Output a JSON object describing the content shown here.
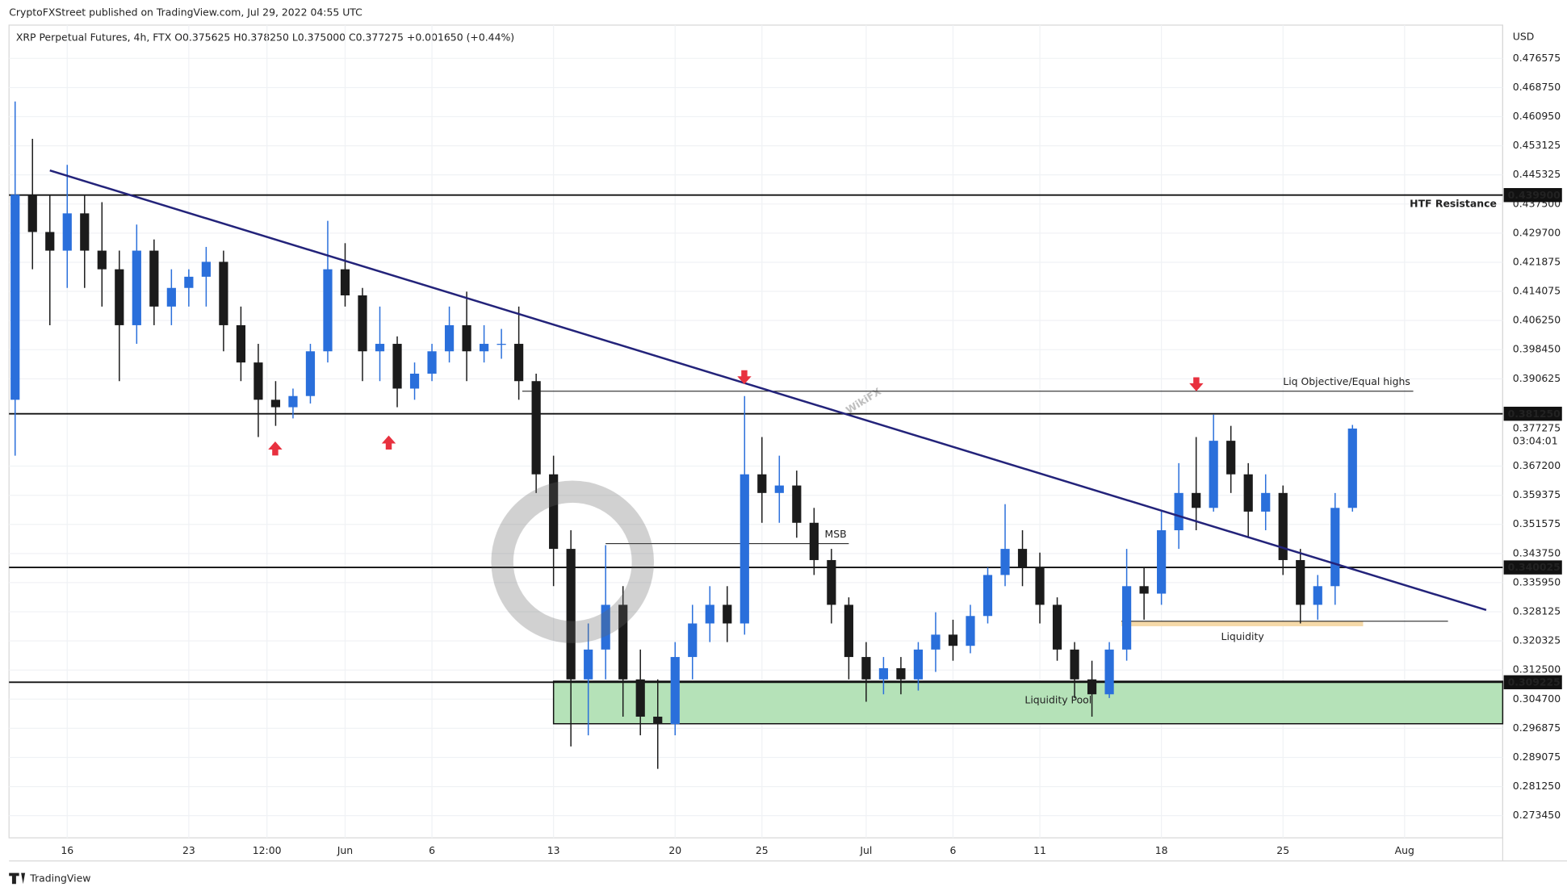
{
  "header": {
    "publisher": "CryptoFXStreet published on TradingView.com, Jul 29, 2022 04:55 UTC",
    "symbol_line": "XRP Perpetual Futures, 4h, FTX  O0.375625 H0.378250 L0.375000 C0.377275 +0.001650 (+0.44%)"
  },
  "footer": "TradingView",
  "watermark": "WikiFX",
  "chart_data": {
    "type": "candlestick",
    "y_axis_label": "USD",
    "xlim": [
      -3.35,
      82.65
    ],
    "ylim": [
      0.2675,
      0.4855
    ],
    "grid": true,
    "up_color": "#2a6fdb",
    "down_color": "#1b1b1b",
    "xticks": [
      {
        "value": 0,
        "label": "16"
      },
      {
        "value": 7,
        "label": "23"
      },
      {
        "value": 11.5,
        "label": "12:00"
      },
      {
        "value": 16,
        "label": "Jun"
      },
      {
        "value": 21,
        "label": "6"
      },
      {
        "value": 28,
        "label": "13"
      },
      {
        "value": 35,
        "label": "20"
      },
      {
        "value": 40,
        "label": "25"
      },
      {
        "value": 46,
        "label": "Jul"
      },
      {
        "value": 51,
        "label": "6"
      },
      {
        "value": 56,
        "label": "11"
      },
      {
        "value": 63,
        "label": "18"
      },
      {
        "value": 70,
        "label": "25"
      },
      {
        "value": 77,
        "label": "Aug"
      }
    ],
    "yticks": [
      {
        "value": 0.476575,
        "label": "0.476575"
      },
      {
        "value": 0.46875,
        "label": "0.468750"
      },
      {
        "value": 0.46095,
        "label": "0.460950"
      },
      {
        "value": 0.453125,
        "label": "0.453125"
      },
      {
        "value": 0.445325,
        "label": "0.445325"
      },
      {
        "value": 0.4375,
        "label": "0.437500"
      },
      {
        "value": 0.4297,
        "label": "0.429700"
      },
      {
        "value": 0.421875,
        "label": "0.421875"
      },
      {
        "value": 0.414075,
        "label": "0.414075"
      },
      {
        "value": 0.40625,
        "label": "0.406250"
      },
      {
        "value": 0.39845,
        "label": "0.398450"
      },
      {
        "value": 0.390625,
        "label": "0.390625"
      },
      {
        "value": 0.3672,
        "label": "0.367200"
      },
      {
        "value": 0.359375,
        "label": "0.359375"
      },
      {
        "value": 0.351575,
        "label": "0.351575"
      },
      {
        "value": 0.34375,
        "label": "0.343750"
      },
      {
        "value": 0.33595,
        "label": "0.335950"
      },
      {
        "value": 0.328125,
        "label": "0.328125"
      },
      {
        "value": 0.320325,
        "label": "0.320325"
      },
      {
        "value": 0.3125,
        "label": "0.312500"
      },
      {
        "value": 0.3047,
        "label": "0.304700"
      },
      {
        "value": 0.296875,
        "label": "0.296875"
      },
      {
        "value": 0.289075,
        "label": "0.289075"
      },
      {
        "value": 0.28125,
        "label": "0.281250"
      },
      {
        "value": 0.27345,
        "label": "0.273450"
      }
    ],
    "candles": {
      "x": [
        -3,
        -2,
        -1,
        0,
        1,
        2,
        3,
        4,
        5,
        6,
        7,
        8,
        9,
        10,
        11,
        12,
        13,
        14,
        15,
        16,
        17,
        18,
        19,
        20,
        21,
        22,
        23,
        24,
        25,
        26,
        27,
        28,
        29,
        30,
        31,
        32,
        33,
        34,
        35,
        36,
        37,
        38,
        39,
        40,
        41,
        42,
        43,
        44,
        45,
        46,
        47,
        48,
        49,
        50,
        51,
        52,
        53,
        54,
        55,
        56,
        57,
        58,
        59,
        60,
        61,
        62,
        63,
        64,
        65,
        66,
        67,
        68,
        69,
        70,
        71,
        72,
        73,
        74
      ],
      "open": [
        0.385,
        0.44,
        0.43,
        0.425,
        0.435,
        0.425,
        0.42,
        0.405,
        0.425,
        0.41,
        0.415,
        0.418,
        0.422,
        0.405,
        0.395,
        0.385,
        0.383,
        0.386,
        0.398,
        0.42,
        0.413,
        0.398,
        0.4,
        0.388,
        0.392,
        0.398,
        0.405,
        0.398,
        0.4,
        0.4,
        0.39,
        0.365,
        0.345,
        0.31,
        0.318,
        0.33,
        0.31,
        0.3,
        0.298,
        0.316,
        0.325,
        0.33,
        0.325,
        0.365,
        0.36,
        0.362,
        0.352,
        0.342,
        0.33,
        0.316,
        0.31,
        0.313,
        0.31,
        0.318,
        0.322,
        0.319,
        0.327,
        0.338,
        0.345,
        0.34,
        0.33,
        0.318,
        0.31,
        0.306,
        0.318,
        0.335,
        0.333,
        0.35,
        0.36,
        0.356,
        0.374,
        0.365,
        0.355,
        0.36,
        0.342,
        0.33,
        0.335,
        0.356
      ],
      "high": [
        0.465,
        0.455,
        0.44,
        0.448,
        0.44,
        0.438,
        0.425,
        0.432,
        0.428,
        0.42,
        0.42,
        0.426,
        0.425,
        0.41,
        0.4,
        0.39,
        0.388,
        0.4,
        0.433,
        0.427,
        0.415,
        0.41,
        0.402,
        0.395,
        0.4,
        0.41,
        0.414,
        0.405,
        0.404,
        0.41,
        0.392,
        0.37,
        0.35,
        0.325,
        0.346,
        0.335,
        0.318,
        0.31,
        0.32,
        0.33,
        0.335,
        0.335,
        0.386,
        0.375,
        0.37,
        0.366,
        0.356,
        0.345,
        0.332,
        0.32,
        0.316,
        0.316,
        0.32,
        0.328,
        0.326,
        0.33,
        0.34,
        0.357,
        0.35,
        0.344,
        0.332,
        0.32,
        0.315,
        0.32,
        0.345,
        0.34,
        0.355,
        0.368,
        0.375,
        0.381,
        0.378,
        0.368,
        0.365,
        0.362,
        0.345,
        0.338,
        0.36,
        0.37825
      ],
      "low": [
        0.37,
        0.42,
        0.405,
        0.415,
        0.415,
        0.41,
        0.39,
        0.4,
        0.405,
        0.405,
        0.41,
        0.41,
        0.398,
        0.39,
        0.375,
        0.378,
        0.38,
        0.384,
        0.395,
        0.41,
        0.39,
        0.39,
        0.383,
        0.385,
        0.39,
        0.395,
        0.39,
        0.395,
        0.396,
        0.385,
        0.36,
        0.335,
        0.292,
        0.295,
        0.31,
        0.3,
        0.295,
        0.286,
        0.295,
        0.31,
        0.32,
        0.32,
        0.322,
        0.352,
        0.352,
        0.348,
        0.338,
        0.325,
        0.31,
        0.304,
        0.306,
        0.306,
        0.307,
        0.312,
        0.315,
        0.317,
        0.325,
        0.335,
        0.335,
        0.325,
        0.315,
        0.305,
        0.3,
        0.305,
        0.315,
        0.326,
        0.33,
        0.345,
        0.35,
        0.355,
        0.36,
        0.348,
        0.35,
        0.338,
        0.325,
        0.326,
        0.33,
        0.355
      ],
      "close": [
        0.44,
        0.43,
        0.425,
        0.435,
        0.425,
        0.42,
        0.405,
        0.425,
        0.41,
        0.415,
        0.418,
        0.422,
        0.405,
        0.395,
        0.385,
        0.383,
        0.386,
        0.398,
        0.42,
        0.413,
        0.398,
        0.4,
        0.388,
        0.392,
        0.398,
        0.405,
        0.398,
        0.4,
        0.4,
        0.39,
        0.365,
        0.345,
        0.31,
        0.318,
        0.33,
        0.31,
        0.3,
        0.298,
        0.316,
        0.325,
        0.33,
        0.325,
        0.365,
        0.36,
        0.362,
        0.352,
        0.342,
        0.33,
        0.316,
        0.31,
        0.313,
        0.31,
        0.318,
        0.322,
        0.319,
        0.327,
        0.338,
        0.345,
        0.34,
        0.33,
        0.318,
        0.31,
        0.306,
        0.318,
        0.335,
        0.333,
        0.35,
        0.36,
        0.356,
        0.374,
        0.365,
        0.355,
        0.36,
        0.342,
        0.33,
        0.335,
        0.356,
        0.377275
      ]
    },
    "levels": [
      {
        "value": 0.4399,
        "label": "0.439900",
        "note": "HTF Resistance",
        "note_color": "#e0263b"
      },
      {
        "value": 0.38125,
        "label": "0.381250"
      },
      {
        "value": 0.340025,
        "label": "0.340025"
      },
      {
        "value": 0.309225,
        "label": "0.309225"
      }
    ],
    "last_price": {
      "value": 0.377275,
      "label": "0.377275",
      "countdown": "03:04:01"
    },
    "trendline": {
      "x": [
        -1,
        81.7
      ],
      "y": [
        0.4465,
        0.3286
      ],
      "color": "#23237a"
    },
    "equal_highs": {
      "label": "Liq Objective/Equal highs",
      "value": 0.3873,
      "x": [
        26.2,
        77.5
      ],
      "color": "#17a2b8"
    },
    "msb": {
      "label": "MSB",
      "value": 0.3464,
      "x": [
        31,
        45
      ]
    },
    "liquidity": {
      "label": "Liquidity",
      "value": 0.3256,
      "x": [
        60.7,
        79.5
      ],
      "color": "#f5d9a8"
    },
    "liquidity_pool": {
      "label": "Liquidity Pool",
      "ylim": [
        0.2981,
        0.3095
      ],
      "x": [
        28,
        82.65
      ],
      "color": "#b5e2b8",
      "text_color": "#b0273a"
    }
  }
}
